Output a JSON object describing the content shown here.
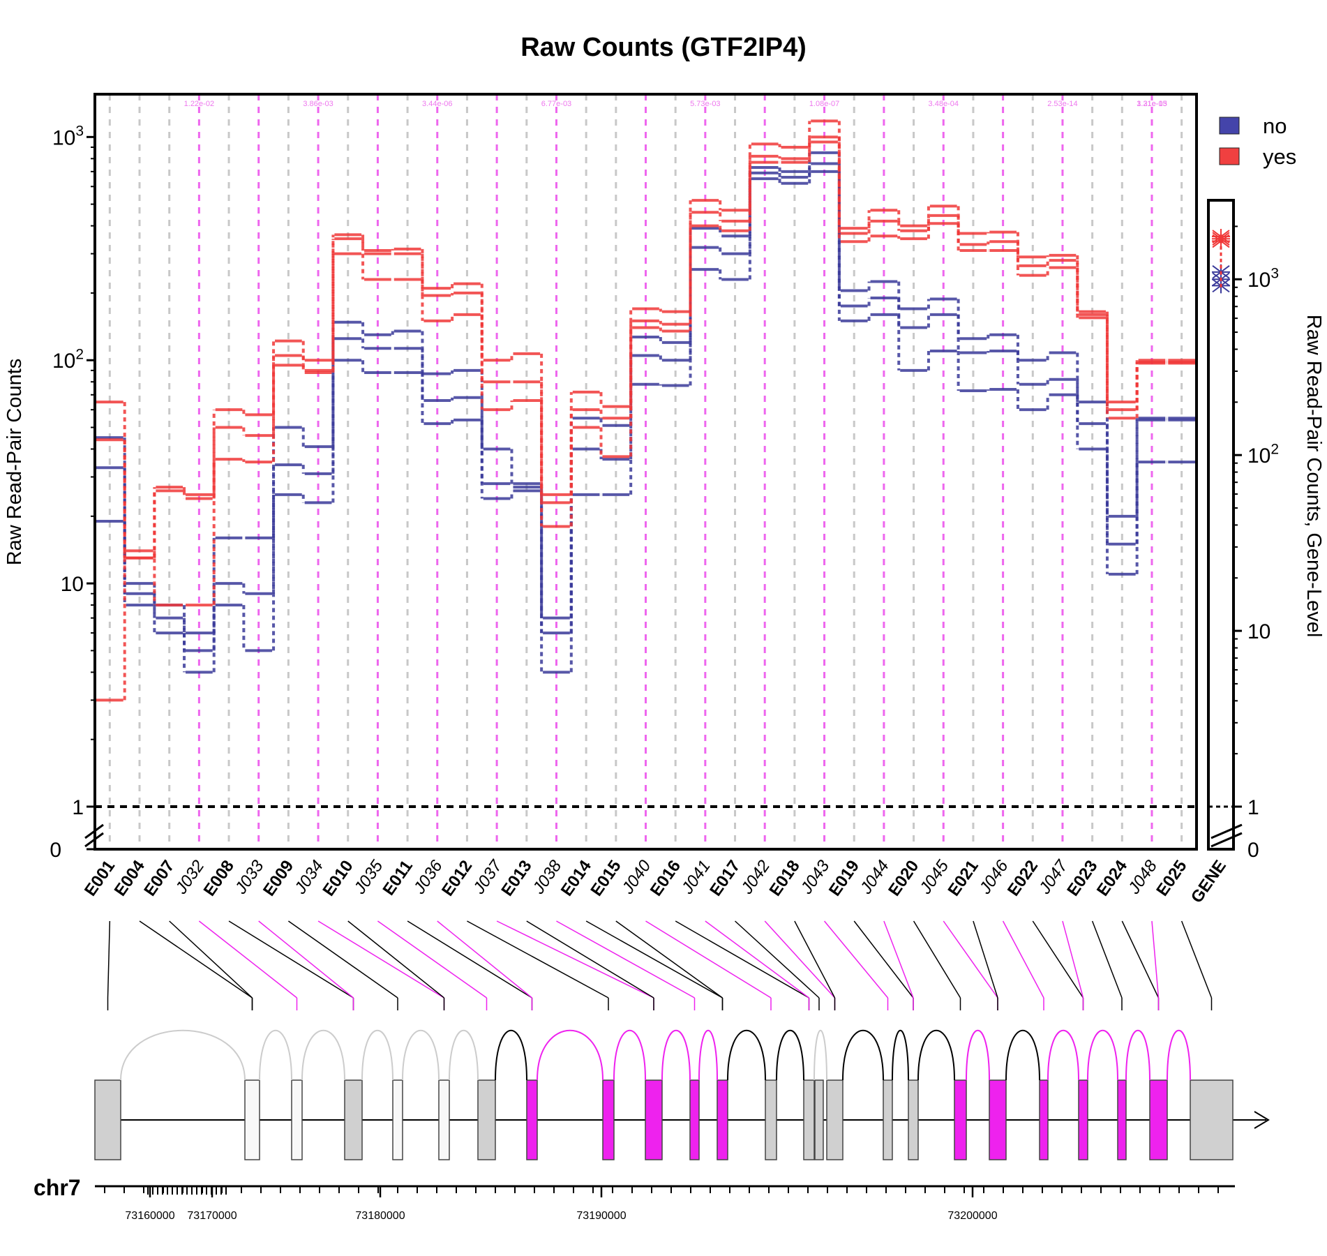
{
  "chart_data": {
    "type": "line",
    "title": "Raw Counts (GTF2IP4)",
    "ylabel": "Raw Read-Pair Counts",
    "ylabel_right": "Raw Read-Pair Counts, Gene-Level",
    "y_scale": "log",
    "ylim": [
      1,
      1500
    ],
    "y_ticks_main": [
      {
        "value": 1,
        "label": "1"
      },
      {
        "value": 10,
        "label": "10"
      },
      {
        "value": 100,
        "label": "10^2"
      },
      {
        "value": 1000,
        "label": "10^3"
      }
    ],
    "y_tick_zero_label": "0",
    "y_ticks_gene": [
      {
        "value": 1,
        "label": "1"
      },
      {
        "value": 10,
        "label": "10"
      },
      {
        "value": 100,
        "label": "10^2"
      },
      {
        "value": 1000,
        "label": "10^3"
      }
    ],
    "gene_ylim": [
      1,
      2500
    ],
    "threshold_line": 1,
    "legend": {
      "position": "top-right",
      "entries": [
        {
          "label": "no",
          "color": "#4444aa"
        },
        {
          "label": "yes",
          "color": "#f04040"
        }
      ]
    },
    "colors": {
      "no": "#3a3a9a",
      "yes": "#f03838",
      "exon_grid": "#c8c8c8",
      "junction_grid": "#ee66ee",
      "junction_feature": "#ee22ee",
      "exon_feature": "#d0d0d0"
    },
    "categories": [
      {
        "label": "E001",
        "kind": "exon"
      },
      {
        "label": "E004",
        "kind": "exon"
      },
      {
        "label": "E007",
        "kind": "exon"
      },
      {
        "label": "J032",
        "kind": "junction"
      },
      {
        "label": "E008",
        "kind": "exon"
      },
      {
        "label": "J033",
        "kind": "junction"
      },
      {
        "label": "E009",
        "kind": "exon"
      },
      {
        "label": "J034",
        "kind": "junction"
      },
      {
        "label": "E010",
        "kind": "exon"
      },
      {
        "label": "J035",
        "kind": "junction"
      },
      {
        "label": "E011",
        "kind": "exon"
      },
      {
        "label": "J036",
        "kind": "junction"
      },
      {
        "label": "E012",
        "kind": "exon"
      },
      {
        "label": "J037",
        "kind": "junction"
      },
      {
        "label": "E013",
        "kind": "exon"
      },
      {
        "label": "J038",
        "kind": "junction"
      },
      {
        "label": "E014",
        "kind": "exon"
      },
      {
        "label": "E015",
        "kind": "exon"
      },
      {
        "label": "J040",
        "kind": "junction"
      },
      {
        "label": "E016",
        "kind": "exon"
      },
      {
        "label": "J041",
        "kind": "junction"
      },
      {
        "label": "E017",
        "kind": "exon"
      },
      {
        "label": "J042",
        "kind": "junction"
      },
      {
        "label": "E018",
        "kind": "exon"
      },
      {
        "label": "J043",
        "kind": "junction"
      },
      {
        "label": "E019",
        "kind": "exon"
      },
      {
        "label": "J044",
        "kind": "junction"
      },
      {
        "label": "E020",
        "kind": "exon"
      },
      {
        "label": "J045",
        "kind": "junction"
      },
      {
        "label": "E021",
        "kind": "exon"
      },
      {
        "label": "J046",
        "kind": "junction"
      },
      {
        "label": "E022",
        "kind": "exon"
      },
      {
        "label": "J047",
        "kind": "junction"
      },
      {
        "label": "E023",
        "kind": "exon"
      },
      {
        "label": "E024",
        "kind": "exon"
      },
      {
        "label": "J048",
        "kind": "junction"
      },
      {
        "label": "E025",
        "kind": "exon"
      }
    ],
    "gene_label": "GENE",
    "series": [
      {
        "name": "no",
        "values": [
          45,
          10,
          8,
          6,
          16,
          16,
          50,
          41,
          148,
          130,
          135,
          87,
          90,
          40,
          27,
          7,
          55,
          51,
          127,
          120,
          390,
          360,
          730,
          700,
          850,
          205,
          225,
          170,
          188,
          125,
          130,
          100,
          108,
          65,
          20,
          54,
          54
        ]
      },
      {
        "name": "no",
        "values": [
          33,
          9,
          7,
          5,
          10,
          9,
          34,
          31,
          125,
          113,
          113,
          66,
          68,
          28,
          28,
          6,
          40,
          36,
          105,
          100,
          320,
          300,
          690,
          660,
          760,
          175,
          190,
          140,
          160,
          108,
          110,
          78,
          82,
          52,
          15,
          35,
          35
        ]
      },
      {
        "name": "no",
        "values": [
          19,
          8,
          6,
          4,
          8,
          5,
          25,
          23,
          100,
          88,
          88,
          52,
          54,
          24,
          26,
          4,
          25,
          25,
          78,
          77,
          255,
          230,
          650,
          620,
          700,
          150,
          160,
          90,
          110,
          73,
          74,
          60,
          70,
          40,
          11,
          55,
          55
        ]
      },
      {
        "name": "yes",
        "values": [
          65,
          13,
          27,
          25,
          60,
          57,
          122,
          100,
          365,
          310,
          315,
          210,
          220,
          100,
          107,
          25,
          72,
          62,
          170,
          165,
          520,
          470,
          930,
          900,
          1180,
          390,
          470,
          400,
          490,
          370,
          375,
          290,
          295,
          165,
          65,
          100,
          100
        ]
      },
      {
        "name": "yes",
        "values": [
          44,
          13,
          26,
          24,
          50,
          46,
          105,
          90,
          350,
          300,
          300,
          195,
          200,
          80,
          80,
          23,
          60,
          55,
          150,
          145,
          460,
          420,
          820,
          800,
          1000,
          370,
          420,
          380,
          445,
          330,
          340,
          265,
          280,
          160,
          60,
          98,
          98
        ]
      },
      {
        "name": "yes",
        "values": [
          3,
          14,
          8,
          8,
          36,
          35,
          95,
          88,
          300,
          230,
          230,
          150,
          160,
          60,
          66,
          18,
          50,
          37,
          140,
          135,
          400,
          380,
          770,
          770,
          950,
          340,
          360,
          350,
          410,
          310,
          310,
          240,
          260,
          155,
          55,
          97,
          97
        ]
      }
    ],
    "gene_level": {
      "no": [
        1100,
        1000,
        920
      ],
      "yes": [
        1750,
        1700,
        1650
      ]
    },
    "junction_pvalues": [
      "1.22e-02",
      "3.86e-03",
      "3.44e-06",
      "6.77e-03",
      "5.73e-03",
      "1.08e-07",
      "3.48e-04",
      "2.53e-14",
      "3.21e-13",
      "1.31e-05"
    ],
    "track": {
      "chromosome": "chr7",
      "position_ticks": [
        "73160000",
        "73170000",
        "73180000",
        "73190000",
        "73200000"
      ]
    }
  }
}
